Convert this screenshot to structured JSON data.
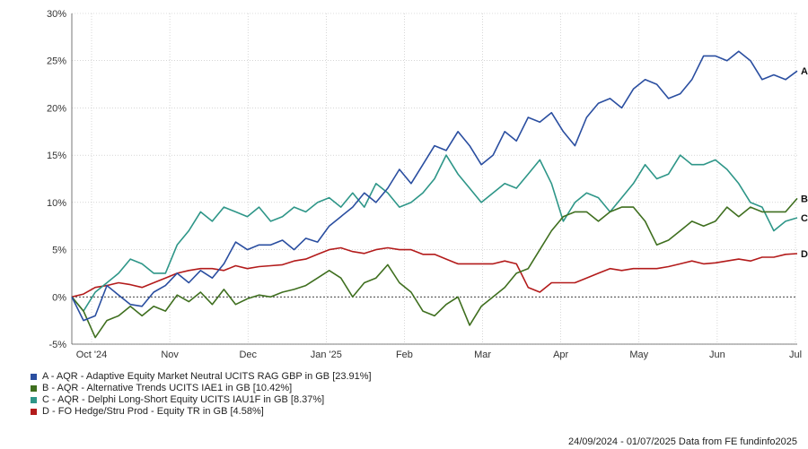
{
  "chart_data": {
    "type": "line",
    "x_labels": [
      "Oct '24",
      "Nov",
      "Dec",
      "Jan '25",
      "Feb",
      "Mar",
      "Apr",
      "May",
      "Jun",
      "Jul"
    ],
    "y_ticks": [
      "30%",
      "25%",
      "20%",
      "15%",
      "10%",
      "5%",
      "0%",
      "-5%"
    ],
    "ylim": [
      -5,
      30
    ],
    "grid": true,
    "legend_position": "bottom-left",
    "series": [
      {
        "key": "A",
        "name": "A - AQR - Adaptive Equity Market Neutral UCITS RAG GBP in GB [23.91%]",
        "color": "#2a4ea0",
        "values": [
          0,
          -2.5,
          -2,
          1.2,
          0.2,
          -0.8,
          -1,
          0.5,
          1.2,
          2.5,
          1.5,
          2.8,
          2,
          3.5,
          5.8,
          5,
          5.5,
          5.5,
          6,
          5,
          6.2,
          5.8,
          7.5,
          8.5,
          9.5,
          11,
          10,
          11.5,
          13.5,
          12,
          14,
          16,
          15.5,
          17.5,
          16,
          14,
          15,
          17.5,
          16.5,
          19,
          18.5,
          19.5,
          17.5,
          16,
          19,
          20.5,
          21,
          20,
          22,
          23,
          22.5,
          21,
          21.5,
          23,
          25.5,
          25.5,
          25,
          26,
          25,
          23,
          23.5,
          23,
          23.91
        ]
      },
      {
        "key": "B",
        "name": "B - AQR - Alternative Trends UCITS IAE1 in GB [10.42%]",
        "color": "#3f6f1f",
        "values": [
          0,
          -1.5,
          -4.3,
          -2.5,
          -2,
          -1,
          -2,
          -1,
          -1.5,
          0.2,
          -0.5,
          0.5,
          -0.8,
          0.8,
          -0.8,
          -0.2,
          0.2,
          0,
          0.5,
          0.8,
          1.2,
          2,
          2.8,
          2,
          0,
          1.5,
          2,
          3.4,
          1.5,
          0.5,
          -1.5,
          -2,
          -0.8,
          0,
          -3,
          -1,
          0,
          1,
          2.5,
          3,
          5,
          7,
          8.5,
          9,
          9,
          8,
          9,
          9.5,
          9.5,
          8,
          5.5,
          6,
          7,
          8,
          7.5,
          8,
          9.5,
          8.5,
          9.5,
          9,
          9,
          9,
          10.42
        ]
      },
      {
        "key": "C",
        "name": "C - AQR - Delphi Long-Short Equity UCITS IAU1F in GB [8.37%]",
        "color": "#2e9688",
        "values": [
          0,
          -1.5,
          0.5,
          1.5,
          2.5,
          4,
          3.5,
          2.5,
          2.5,
          5.5,
          7,
          9,
          8,
          9.5,
          9,
          8.5,
          9.5,
          8,
          8.5,
          9.5,
          9,
          10,
          10.5,
          9.5,
          11,
          9.5,
          12,
          11,
          9.5,
          10,
          11,
          12.5,
          15,
          13,
          11.5,
          10,
          11,
          12,
          11.5,
          13,
          14.5,
          12,
          8,
          10,
          11,
          10.5,
          9,
          10.5,
          12,
          14,
          12.5,
          13,
          15,
          14,
          14,
          14.5,
          13.5,
          12,
          10,
          9.5,
          7,
          8,
          8.37
        ]
      },
      {
        "key": "D",
        "name": "D - FO Hedge/Stru Prod - Equity TR in GB [4.58%]",
        "color": "#b31b1b",
        "values": [
          0,
          0.3,
          1,
          1.2,
          1.5,
          1.3,
          1,
          1.5,
          2,
          2.5,
          2.8,
          3,
          3,
          2.8,
          3.3,
          3,
          3.2,
          3.3,
          3.4,
          3.8,
          4,
          4.5,
          5,
          5.2,
          4.8,
          4.6,
          5,
          5.2,
          5,
          5,
          4.5,
          4.5,
          4,
          3.5,
          3.5,
          3.5,
          3.5,
          3.8,
          3.5,
          1,
          0.5,
          1.5,
          1.5,
          1.5,
          2,
          2.5,
          3,
          2.8,
          3,
          3,
          3,
          3.2,
          3.5,
          3.8,
          3.5,
          3.6,
          3.8,
          4,
          3.8,
          4.2,
          4.2,
          4.5,
          4.58
        ]
      }
    ]
  },
  "footer_text": "24/09/2024 - 01/07/2025 Data from FE fundinfo2025"
}
